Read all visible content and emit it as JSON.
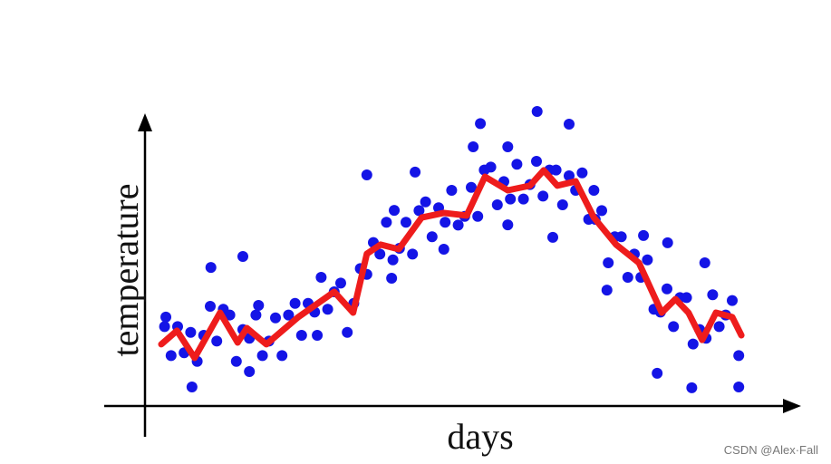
{
  "chart_data": {
    "type": "scatter",
    "xlabel": "days",
    "ylabel": "temperature",
    "xlim": [
      0,
      100
    ],
    "ylim": [
      0,
      110
    ],
    "series": [
      {
        "type": "scatter",
        "color": "#1414e6",
        "x": [
          3,
          4,
          5,
          6,
          7,
          8,
          9,
          10,
          11,
          12,
          13,
          14,
          15,
          16,
          17,
          18,
          19,
          20,
          21,
          22,
          23,
          24,
          25,
          26,
          27,
          28,
          29,
          30,
          31,
          32,
          33,
          34,
          35,
          36,
          37,
          38,
          39,
          40,
          41,
          42,
          43,
          44,
          45,
          46,
          47,
          48,
          49,
          50,
          51,
          52,
          53,
          54,
          55,
          56,
          57,
          58,
          59,
          60,
          61,
          62,
          63,
          64,
          65,
          66,
          67,
          68,
          69,
          70,
          71,
          72,
          73,
          74,
          75,
          76,
          77,
          78,
          79,
          80,
          81,
          82,
          83,
          84,
          85,
          86,
          87,
          88,
          89,
          90,
          91,
          10.1,
          15.0,
          7.2,
          16.0,
          34.0,
          38.2,
          41.4,
          51.4,
          60.1,
          65.0,
          55.6,
          50.3,
          62.5,
          70.8,
          80.1,
          78.5,
          83.8,
          91.0,
          85.8,
          37.8,
          26.4,
          3.2,
          17.4,
          45.8,
          55.6,
          76.4,
          68.8
        ],
        "values": [
          28,
          18,
          28,
          19,
          26,
          16,
          25,
          35,
          23,
          34,
          32,
          16,
          27,
          24,
          32,
          18,
          23,
          31,
          18,
          32,
          36,
          25,
          36,
          33,
          45,
          34,
          40,
          43,
          26,
          36,
          48,
          46,
          57,
          53,
          64,
          51,
          55,
          64,
          53,
          68,
          71,
          59,
          69,
          64,
          75,
          63,
          66,
          76,
          66,
          82,
          83,
          70,
          78,
          72,
          84,
          72,
          77,
          85,
          73,
          82,
          82,
          70,
          80,
          75,
          81,
          65,
          65,
          68,
          50,
          59,
          59,
          45,
          53,
          45,
          51,
          34,
          33,
          41,
          28,
          38,
          38,
          22,
          27,
          24,
          39,
          28,
          32,
          37,
          18,
          48.4,
          52.2,
          7.2,
          12.5,
          80.3,
          68.1,
          81.3,
          98,
          102.2,
          97.8,
          90.0,
          90.0,
          58.8,
          40.6,
          56.9,
          11.9,
          6.9,
          7.2,
          50.0,
          44.7,
          25.0,
          31.3,
          35.3,
          54.7,
          63.1,
          59.4,
          75.0
        ]
      },
      {
        "type": "line",
        "color": "#ee1c1c",
        "x": [
          2.5,
          4.9,
          7.6,
          11.5,
          14.2,
          15.6,
          18.6,
          23.5,
          29.0,
          31.9,
          34.0,
          36.1,
          38.9,
          42.4,
          45.8,
          49.3,
          52.1,
          55.6,
          59.0,
          61.1,
          63.2,
          66.0,
          68.8,
          72.2,
          75.7,
          79.2,
          81.3,
          83.3,
          85.4,
          87.5,
          90.0,
          91.4
        ],
        "values": [
          21.9,
          26.6,
          17.2,
          32.8,
          22.5,
          27.5,
          21.9,
          31.3,
          40.0,
          32.8,
          53.1,
          56.3,
          54.7,
          65.6,
          67.2,
          66.3,
          79.7,
          75.0,
          76.6,
          81.9,
          76.6,
          78.1,
          65.6,
          56.3,
          50.0,
          32.8,
          37.5,
          32.8,
          23.4,
          32.8,
          31.3,
          25.0
        ]
      }
    ]
  },
  "watermark": "CSDN @Alex·Fall"
}
